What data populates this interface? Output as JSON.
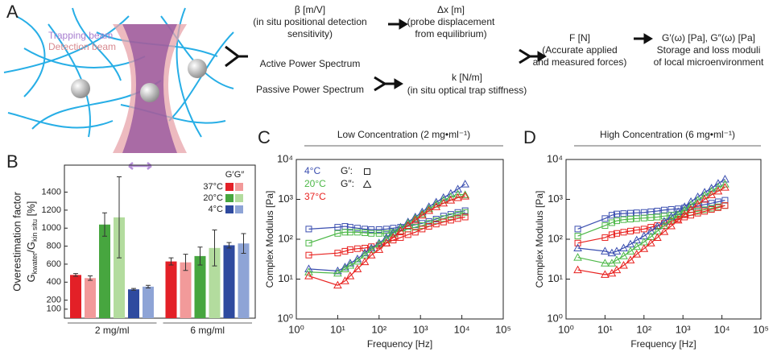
{
  "panel_labels": [
    "A",
    "B",
    "C",
    "D"
  ],
  "schematic": {
    "beam_labels": [
      "Trapping beam",
      "Detection beam"
    ],
    "flow": {
      "beta": [
        "β [m/V]",
        "(in situ positional detection",
        "sensitivity)"
      ],
      "dx": [
        "Δx [m]",
        "(probe displacement",
        "from equilibrium)"
      ],
      "spectra": [
        "Active Power Spectrum",
        "Passive Power Spectrum"
      ],
      "k": [
        "k [N/m]",
        "(in situ optical trap stiffness)"
      ],
      "force": [
        "F [N]",
        "(Accurate applied",
        "and measured forces)"
      ],
      "moduli": [
        "G′(ω) [Pa], G″(ω) [Pa]",
        "Storage and loss moduli",
        "of local microenvironment"
      ]
    }
  },
  "chart_data": [
    {
      "type": "bar",
      "ylabel": "Overestimation factor",
      "ylabel2": [
        "G",
        "kwater",
        "/G",
        "kin situ",
        " [%]"
      ],
      "categories": [
        "2 mg/ml",
        "6 mg/ml"
      ],
      "legend_columns": [
        "G′",
        "G″"
      ],
      "series": [
        {
          "name": "37°C",
          "colors": [
            "#e32027",
            "#f29a9a"
          ],
          "values": [
            [
              480,
              445
            ],
            [
              630,
              620
            ]
          ],
          "errors": [
            [
              15,
              25
            ],
            [
              40,
              90
            ]
          ]
        },
        {
          "name": "20°C",
          "colors": [
            "#47a63f",
            "#b3dc9e"
          ],
          "values": [
            [
              1040,
              1120
            ],
            [
              690,
              780
            ]
          ],
          "errors": [
            [
              130,
              450
            ],
            [
              100,
              200
            ]
          ]
        },
        {
          "name": "4°C",
          "colors": [
            "#2e4a9f",
            "#8ea4d6"
          ],
          "values": [
            [
              320,
              350
            ],
            [
              810,
              830
            ]
          ],
          "errors": [
            [
              10,
              15
            ],
            [
              30,
              110
            ]
          ]
        }
      ],
      "ylim": [
        0,
        1700
      ],
      "yticks": [
        100,
        200,
        400,
        600,
        800,
        1000,
        1200,
        1400
      ]
    },
    {
      "type": "line",
      "title": "Low Concentration (2 mg•ml⁻¹)",
      "xlabel": "Frequency [Hz]",
      "ylabel": "Complex Modulus [Pa]",
      "xscale": "log",
      "yscale": "log",
      "xlim": [
        1,
        100000
      ],
      "ylim": [
        1,
        10000
      ],
      "xticks": [
        {
          "value": 1,
          "label": "10⁰"
        },
        {
          "value": 10,
          "label": "10¹"
        },
        {
          "value": 100,
          "label": "10²"
        },
        {
          "value": 1000,
          "label": "10³"
        },
        {
          "value": 10000,
          "label": "10⁴"
        },
        {
          "value": 100000,
          "label": "10⁵"
        }
      ],
      "yticks": [
        {
          "value": 1,
          "label": "10⁰"
        },
        {
          "value": 10,
          "label": "10¹"
        },
        {
          "value": 100,
          "label": "10²"
        },
        {
          "value": 1000,
          "label": "10³"
        },
        {
          "value": 10000,
          "label": "10⁴"
        }
      ],
      "legend": {
        "temperatures": [
          {
            "text": "4°C",
            "color": "#3b4fb0"
          },
          {
            "text": "20°C",
            "color": "#4db848"
          },
          {
            "text": "37°C",
            "color": "#e8211f"
          }
        ],
        "moduli": [
          {
            "text": "G′:",
            "marker": "square"
          },
          {
            "text": "G″:",
            "marker": "triangle"
          }
        ]
      },
      "x": [
        2,
        10,
        15,
        20,
        30,
        45,
        65,
        100,
        150,
        220,
        330,
        500,
        750,
        1100,
        1600,
        2400,
        3600,
        5400,
        8000,
        12000
      ],
      "series": [
        {
          "color": "#3b4fb0",
          "marker": "square",
          "values": [
            180,
            200,
            210,
            200,
            190,
            180,
            175,
            175,
            180,
            190,
            200,
            210,
            230,
            250,
            280,
            320,
            380,
            420,
            470,
            520
          ]
        },
        {
          "color": "#4db848",
          "marker": "square",
          "values": [
            80,
            140,
            150,
            150,
            150,
            145,
            140,
            140,
            140,
            150,
            160,
            180,
            200,
            220,
            250,
            290,
            330,
            370,
            420,
            470
          ]
        },
        {
          "color": "#e8211f",
          "marker": "square",
          "values": [
            40,
            45,
            50,
            55,
            58,
            60,
            65,
            70,
            80,
            95,
            110,
            130,
            150,
            180,
            210,
            240,
            270,
            300,
            330,
            360
          ]
        },
        {
          "color": "#3b4fb0",
          "marker": "triangle",
          "values": [
            18,
            16,
            20,
            25,
            32,
            45,
            60,
            80,
            110,
            150,
            200,
            270,
            360,
            480,
            650,
            850,
            1100,
            1400,
            1800,
            2400
          ]
        },
        {
          "color": "#4db848",
          "marker": "triangle",
          "values": [
            15,
            14,
            18,
            22,
            28,
            40,
            55,
            75,
            100,
            140,
            190,
            250,
            330,
            430,
            580,
            750,
            950,
            1150,
            1350,
            1300
          ]
        },
        {
          "color": "#e8211f",
          "marker": "triangle",
          "values": [
            12,
            7,
            9,
            12,
            18,
            27,
            40,
            55,
            80,
            110,
            160,
            220,
            300,
            400,
            520,
            650,
            800,
            950,
            1100,
            1200
          ]
        }
      ]
    },
    {
      "type": "line",
      "title": "High Concentration (6 mg•ml⁻¹)",
      "xlabel": "Frequency [Hz]",
      "ylabel": "Complex Modulus [Pa]",
      "xscale": "log",
      "yscale": "log",
      "xlim": [
        1,
        100000
      ],
      "ylim": [
        1,
        10000
      ],
      "xticks": [
        {
          "value": 1,
          "label": "10⁰"
        },
        {
          "value": 10,
          "label": "10¹"
        },
        {
          "value": 100,
          "label": "10²"
        },
        {
          "value": 1000,
          "label": "10³"
        },
        {
          "value": 10000,
          "label": "10⁴"
        },
        {
          "value": 100000,
          "label": "10⁵"
        }
      ],
      "yticks": [
        {
          "value": 1,
          "label": "10⁰"
        },
        {
          "value": 10,
          "label": "10¹"
        },
        {
          "value": 100,
          "label": "10²"
        },
        {
          "value": 1000,
          "label": "10³"
        },
        {
          "value": 10000,
          "label": "10⁴"
        }
      ],
      "x": [
        2,
        10,
        15,
        20,
        30,
        45,
        65,
        100,
        150,
        220,
        330,
        500,
        750,
        1100,
        1600,
        2400,
        3600,
        5400,
        8000,
        12000
      ],
      "series": [
        {
          "color": "#3b4fb0",
          "marker": "square",
          "values": [
            180,
            330,
            400,
            430,
            440,
            450,
            460,
            470,
            490,
            510,
            540,
            560,
            580,
            610,
            640,
            680,
            740,
            800,
            870,
            950
          ]
        },
        {
          "color": "#4db848",
          "marker": "square",
          "values": [
            120,
            220,
            260,
            290,
            310,
            320,
            330,
            340,
            350,
            360,
            380,
            400,
            420,
            440,
            470,
            500,
            550,
            600,
            650,
            700
          ]
        },
        {
          "color": "#e8211f",
          "marker": "square",
          "values": [
            80,
            110,
            130,
            140,
            150,
            160,
            170,
            180,
            200,
            220,
            250,
            280,
            320,
            360,
            400,
            450,
            500,
            560,
            620,
            700
          ]
        },
        {
          "color": "#3b4fb0",
          "marker": "triangle",
          "values": [
            60,
            50,
            45,
            50,
            60,
            75,
            95,
            120,
            160,
            210,
            280,
            370,
            490,
            650,
            870,
            1150,
            1500,
            1900,
            2500,
            3200
          ]
        },
        {
          "color": "#4db848",
          "marker": "triangle",
          "values": [
            35,
            25,
            25,
            30,
            38,
            50,
            65,
            85,
            115,
            160,
            220,
            300,
            400,
            540,
            720,
            950,
            1250,
            1600,
            2000,
            2400
          ]
        },
        {
          "color": "#e8211f",
          "marker": "triangle",
          "values": [
            17,
            13,
            14,
            17,
            22,
            30,
            42,
            58,
            80,
            110,
            155,
            215,
            300,
            410,
            560,
            750,
            1000,
            1300,
            1600,
            2000
          ]
        }
      ]
    }
  ]
}
